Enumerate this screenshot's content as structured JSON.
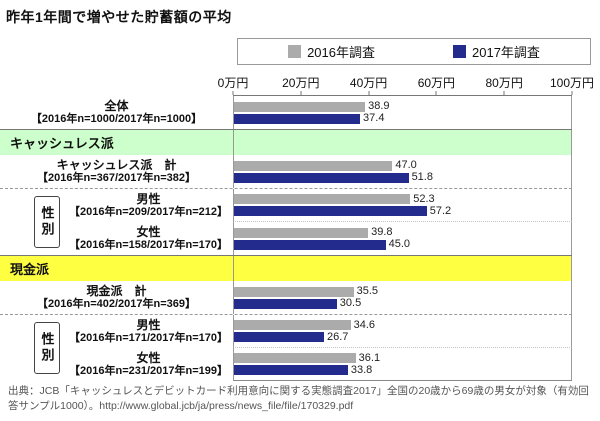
{
  "title": "昨年1年間で増やせた貯蓄額の平均",
  "legend": {
    "items": [
      {
        "label": "2016年調査",
        "color": "#ABABAB"
      },
      {
        "label": "2017年調査",
        "color": "#232C8D"
      }
    ]
  },
  "chart_data": {
    "type": "bar",
    "orientation": "horizontal",
    "unit": "万円",
    "xlim": [
      0,
      100
    ],
    "x_ticks": [
      "0万円",
      "20万円",
      "40万円",
      "60万円",
      "80万円",
      "100万円"
    ],
    "x_tick_values": [
      0,
      20,
      40,
      60,
      80,
      100
    ],
    "grid": false,
    "legend_position": "top",
    "series": [
      {
        "name": "2016年調査",
        "color": "#ABABAB"
      },
      {
        "name": "2017年調査",
        "color": "#232C8D"
      }
    ],
    "gender_box_label": "性別",
    "groups": [
      {
        "type": "row",
        "label": "全体",
        "sub": "【2016年n=1000/2017年n=1000】",
        "values": [
          38.9,
          37.4
        ],
        "divider": "none"
      },
      {
        "type": "section",
        "label": "キャッシュレス派",
        "bg": "#CCFFCC"
      },
      {
        "type": "row",
        "label": "キャッシュレス派　計",
        "sub": "【2016年n=367/2017年n=382】",
        "values": [
          47.0,
          51.8
        ],
        "divider": "dashed"
      },
      {
        "type": "row",
        "label": "男性",
        "sub": "【2016年n=209/2017年n=212】",
        "values": [
          52.3,
          57.2
        ],
        "gender": true,
        "divider": "dotted"
      },
      {
        "type": "row",
        "label": "女性",
        "sub": "【2016年n=158/2017年n=170】",
        "values": [
          39.8,
          45.0
        ],
        "gender": true,
        "divider": "none"
      },
      {
        "type": "section",
        "label": "現金派",
        "bg": "#FFFF42"
      },
      {
        "type": "row",
        "label": "現金派　計",
        "sub": "【2016年n=402/2017年n=369】",
        "values": [
          35.5,
          30.5
        ],
        "divider": "dashed"
      },
      {
        "type": "row",
        "label": "男性",
        "sub": "【2016年n=171/2017年n=170】",
        "values": [
          34.6,
          26.7
        ],
        "gender": true,
        "divider": "dotted"
      },
      {
        "type": "row",
        "label": "女性",
        "sub": "【2016年n=231/2017年n=199】",
        "values": [
          36.1,
          33.8
        ],
        "gender": true,
        "divider": "none"
      }
    ]
  },
  "footer": {
    "source": "出典：JCB「キャッシュレスとデビットカード利用意向に関する実態調査2017」全国の20歳から69歳の男女が対象（有効回答サンプル1000）。http://www.global.jcb/ja/press/news_file/file/170329.pdf"
  }
}
